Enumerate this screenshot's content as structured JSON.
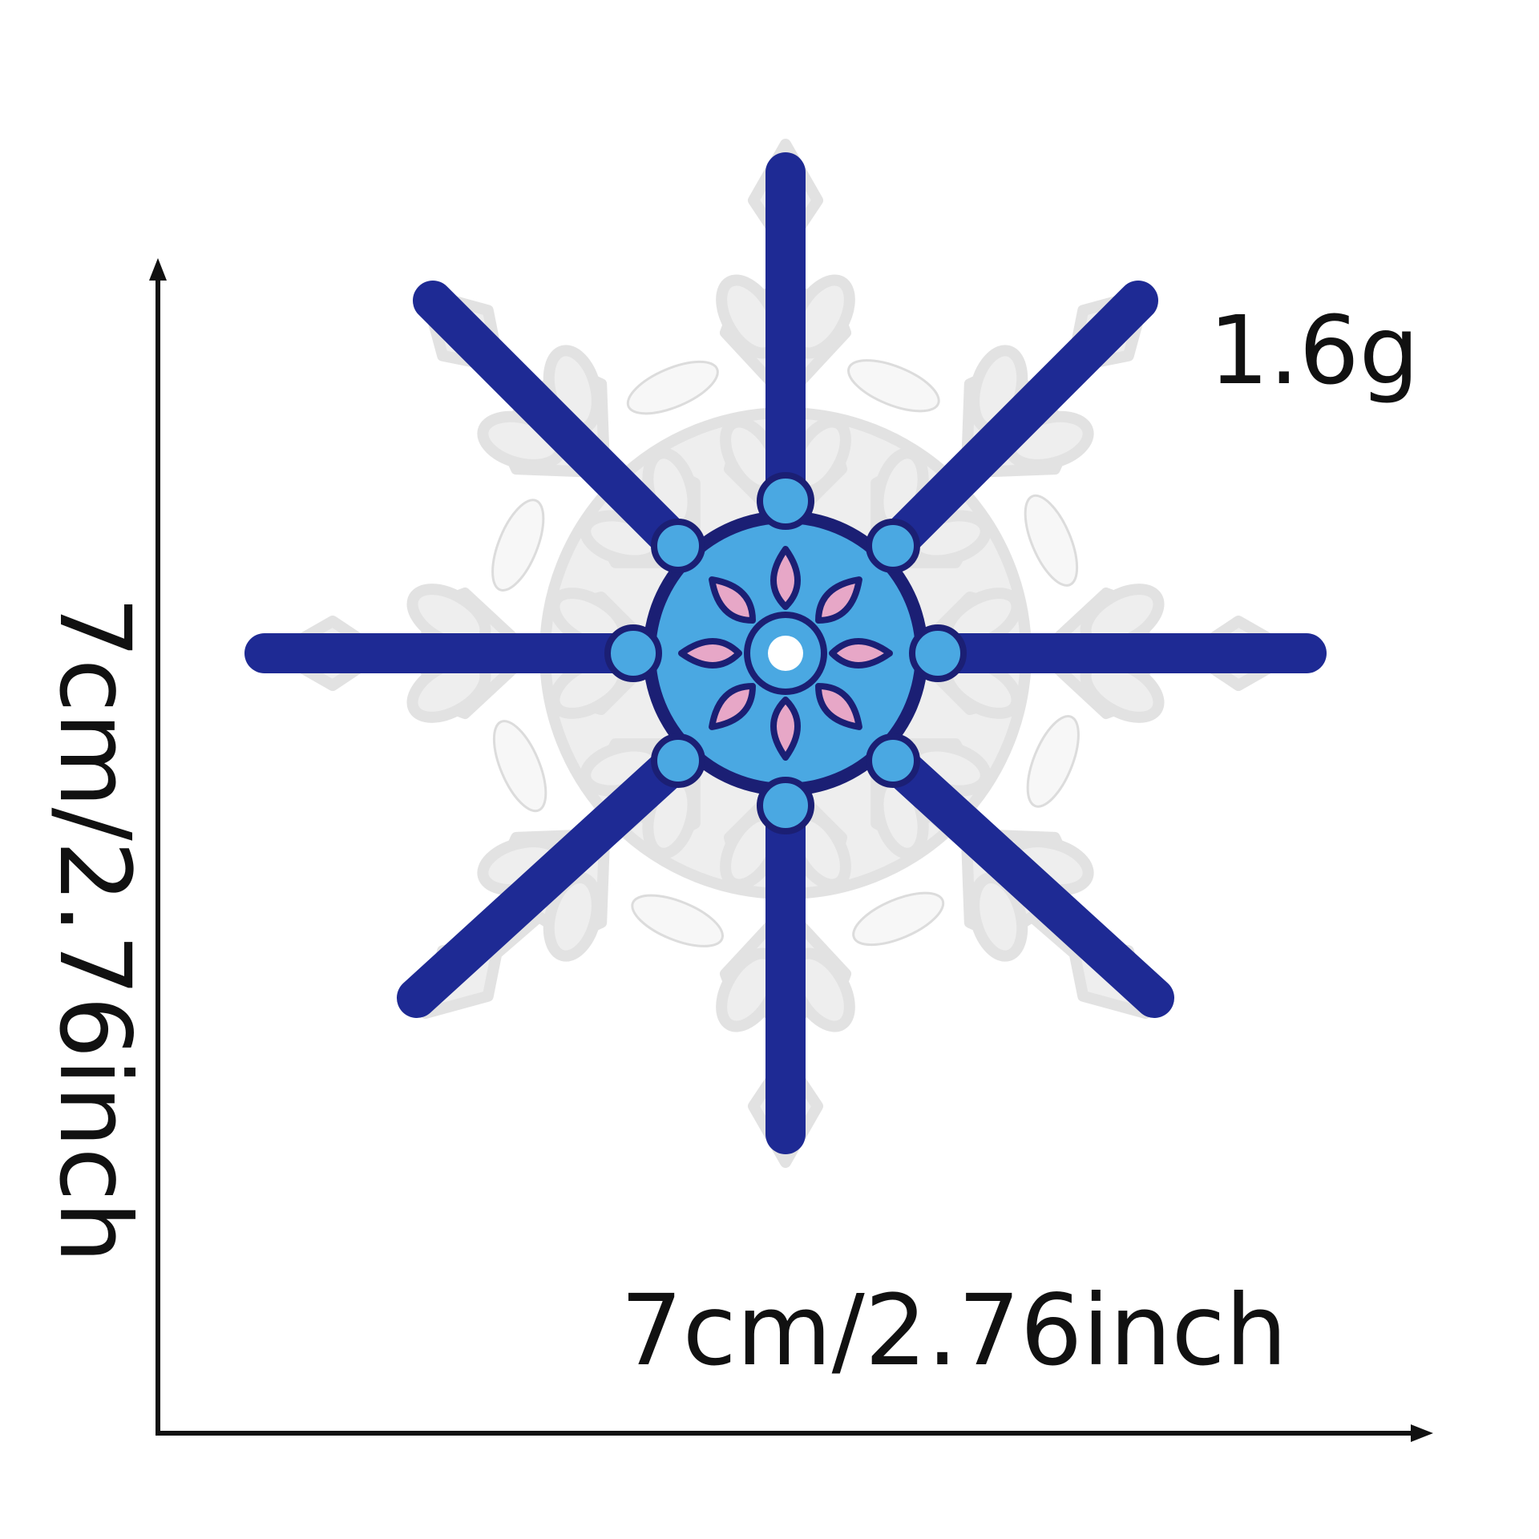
{
  "weight": "1.6g",
  "dimensions": {
    "width_label": "7cm/2.76inch",
    "height_label": "7cm/2.76inch"
  },
  "product": {
    "icon": "snowflake-patch",
    "colors": {
      "outline": "#eeeeee",
      "fill": "#f3f3f3",
      "spoke": "#1e2a94",
      "hub": "#4aa8e2",
      "petal": "#e7a7c7",
      "petal_outline": "#1b1f74"
    }
  }
}
